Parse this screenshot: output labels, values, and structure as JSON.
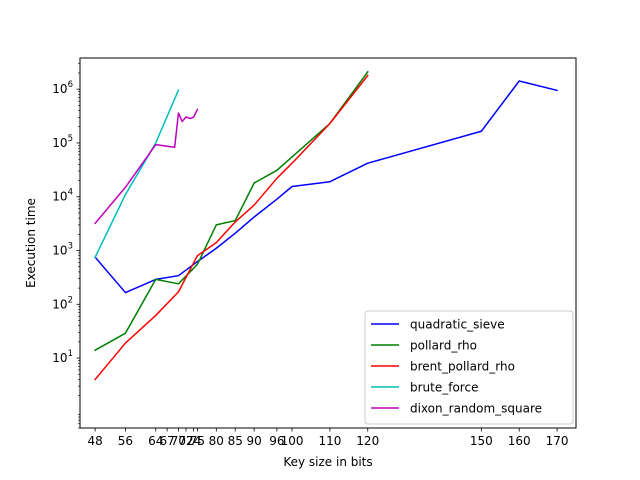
{
  "chart_data": {
    "type": "line",
    "xlabel": "Key size in bits",
    "ylabel": "Execution time",
    "yscale": "log",
    "xlim": [
      44,
      175
    ],
    "ylim": [
      0.5,
      3800000
    ],
    "grid": false,
    "legend_position": "lower-right",
    "x_ticks": [
      48,
      56,
      64,
      67,
      70,
      72,
      74,
      75,
      80,
      85,
      90,
      96,
      100,
      110,
      120,
      150,
      160,
      170
    ],
    "x_tick_labels": [
      "48",
      "56",
      "64",
      "67",
      "70",
      "72",
      "74",
      "75",
      "80",
      "85",
      "90",
      "96",
      "100",
      "110",
      "120",
      "150",
      "160",
      "170"
    ],
    "y_ticks": [
      10,
      100,
      1000,
      10000,
      100000,
      1000000
    ],
    "y_tick_labels": [
      {
        "base": "10",
        "exp": "1"
      },
      {
        "base": "10",
        "exp": "2"
      },
      {
        "base": "10",
        "exp": "3"
      },
      {
        "base": "10",
        "exp": "4"
      },
      {
        "base": "10",
        "exp": "5"
      },
      {
        "base": "10",
        "exp": "6"
      }
    ],
    "series": [
      {
        "name": "quadratic_sieve",
        "color": "#0000ff",
        "x": [
          48,
          56,
          64,
          70,
          75,
          80,
          85,
          90,
          96,
          100,
          110,
          120,
          150,
          160,
          170
        ],
        "y": [
          750,
          165,
          290,
          340,
          620,
          1100,
          2100,
          4200,
          9000,
          15500,
          19000,
          42000,
          165000,
          1420000,
          950000
        ]
      },
      {
        "name": "pollard_rho",
        "color": "#008000",
        "x": [
          48,
          56,
          64,
          70,
          75,
          80,
          85,
          90,
          96,
          100,
          110,
          120
        ],
        "y": [
          14,
          29,
          290,
          240,
          550,
          3000,
          3600,
          18000,
          31000,
          55000,
          230000,
          2100000
        ]
      },
      {
        "name": "brent_pollard_rho",
        "color": "#ff0000",
        "x": [
          48,
          56,
          64,
          70,
          75,
          80,
          85,
          90,
          96,
          100,
          110,
          120
        ],
        "y": [
          4,
          19,
          62,
          170,
          800,
          1400,
          3400,
          7000,
          22000,
          42000,
          230000,
          1800000
        ]
      },
      {
        "name": "brute_force",
        "color": "#00bfbf",
        "x": [
          48,
          56,
          64,
          70
        ],
        "y": [
          750,
          11000,
          100000,
          960000
        ]
      },
      {
        "name": "dixon_random_square",
        "color": "#bf00bf",
        "x": [
          48,
          56,
          64,
          69,
          70,
          71,
          72,
          73,
          74,
          75
        ],
        "y": [
          3200,
          15000,
          93000,
          83000,
          360000,
          250000,
          305000,
          285000,
          300000,
          420000
        ]
      }
    ]
  }
}
